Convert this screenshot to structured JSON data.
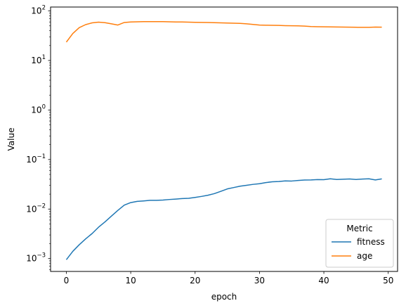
{
  "chart_data": {
    "type": "line",
    "xlabel": "epoch",
    "ylabel": "Value",
    "yscale": "log",
    "xlim": [
      -2.45,
      51.45
    ],
    "ylim": [
      0.00055,
      120
    ],
    "xticks": [
      0,
      10,
      20,
      30,
      40,
      50
    ],
    "xtick_labels": [
      "0",
      "10",
      "20",
      "30",
      "40",
      "50"
    ],
    "yticks": [
      {
        "value": 0.001,
        "base": "10",
        "exp": "−3"
      },
      {
        "value": 0.01,
        "base": "10",
        "exp": "−2"
      },
      {
        "value": 0.1,
        "base": "10",
        "exp": "−1"
      },
      {
        "value": 1,
        "base": "10",
        "exp": "0"
      },
      {
        "value": 10,
        "base": "10",
        "exp": "1"
      },
      {
        "value": 100,
        "base": "10",
        "exp": "2"
      }
    ],
    "grid": false,
    "legend": {
      "title": "Metric",
      "placement": "bottom-right"
    },
    "x": [
      0,
      1,
      2,
      3,
      4,
      5,
      6,
      7,
      8,
      9,
      10,
      11,
      12,
      13,
      14,
      15,
      16,
      17,
      18,
      19,
      20,
      21,
      22,
      23,
      24,
      25,
      26,
      27,
      28,
      29,
      30,
      31,
      32,
      33,
      34,
      35,
      36,
      37,
      38,
      39,
      40,
      41,
      42,
      43,
      44,
      45,
      46,
      47,
      48,
      49
    ],
    "series": [
      {
        "name": "fitness",
        "color": "#1f77b4",
        "values": [
          0.00095,
          0.0014,
          0.0019,
          0.0025,
          0.0032,
          0.0043,
          0.0055,
          0.0072,
          0.0094,
          0.012,
          0.0135,
          0.0143,
          0.0146,
          0.015,
          0.015,
          0.0152,
          0.0156,
          0.0159,
          0.0163,
          0.0165,
          0.0172,
          0.018,
          0.019,
          0.0205,
          0.0228,
          0.0255,
          0.0272,
          0.029,
          0.0302,
          0.0315,
          0.0325,
          0.0343,
          0.0355,
          0.036,
          0.037,
          0.0368,
          0.0378,
          0.0385,
          0.0387,
          0.0393,
          0.0392,
          0.0408,
          0.0395,
          0.04,
          0.0405,
          0.0396,
          0.0403,
          0.0408,
          0.0387,
          0.0407
        ]
      },
      {
        "name": "age",
        "color": "#ff7f0e",
        "values": [
          23.5,
          35,
          46,
          53,
          57.5,
          59.5,
          58,
          55,
          52,
          58.5,
          60,
          60.5,
          60.8,
          61,
          61,
          60.8,
          60.5,
          60,
          59.8,
          59.5,
          59,
          58.8,
          58.5,
          58,
          57.5,
          57,
          56.5,
          56,
          55,
          53.5,
          52,
          51.5,
          51.2,
          51,
          50.5,
          50.2,
          50,
          49.5,
          48.5,
          48,
          47.8,
          47.6,
          47.4,
          47.2,
          47,
          46.8,
          46.6,
          46.7,
          47.2,
          47
        ]
      }
    ]
  }
}
